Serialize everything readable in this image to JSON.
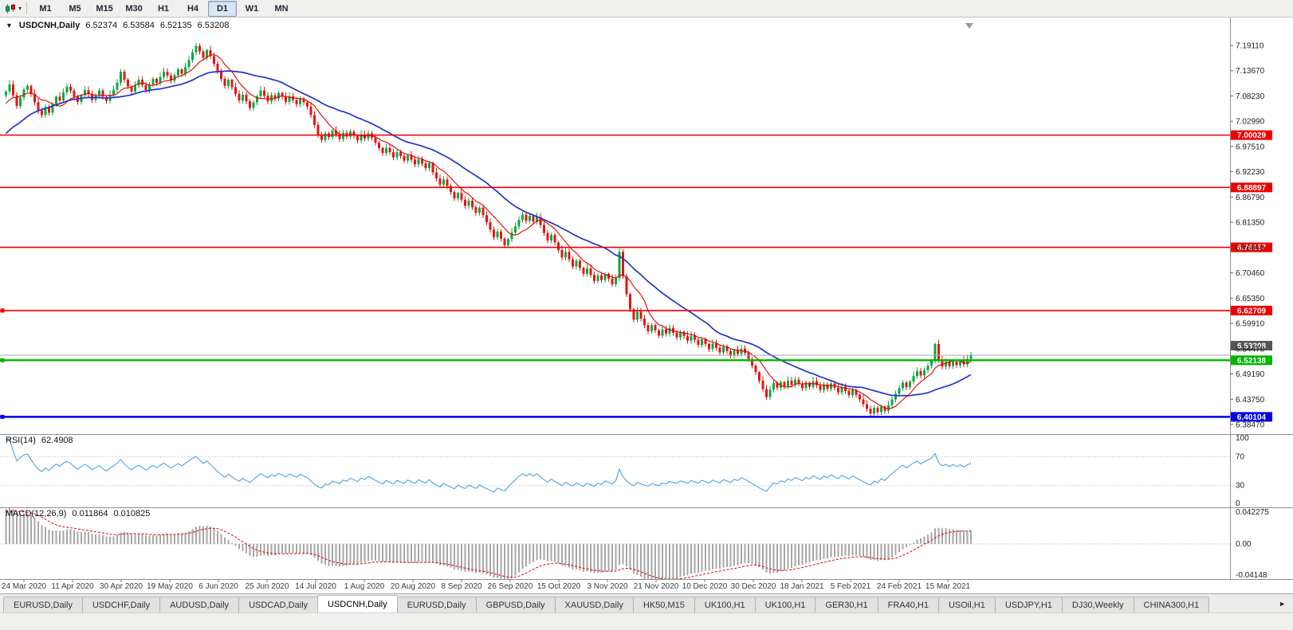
{
  "icons": {
    "dropdown_caret": "▾",
    "one_click_arrow": "▼",
    "tab_scroll_right": "►",
    "chart_type_icon": "candlestick-chart-icon",
    "chart_shift_icon": "chart-shift-triangle"
  },
  "toolbar": {
    "timeframes": [
      "M1",
      "M5",
      "M15",
      "M30",
      "H1",
      "H4",
      "D1",
      "W1",
      "MN"
    ],
    "active": "D1"
  },
  "chart": {
    "title": {
      "symbol": "USDCNH,Daily",
      "open": "6.52374",
      "high": "6.53584",
      "low": "6.52135",
      "close": "6.53208"
    },
    "price_scale": [
      "7.19110",
      "7.13670",
      "7.08230",
      "7.02990",
      "6.97510",
      "6.92230",
      "6.86790",
      "6.81350",
      "6.76010",
      "6.70460",
      "6.65350",
      "6.59910",
      "6.54470",
      "6.49190",
      "6.43750",
      "6.38470"
    ],
    "hlines": [
      {
        "label": "7.00029",
        "price": 7.00029,
        "color": "#ee0000",
        "width": 1.6,
        "handles": false
      },
      {
        "label": "6.88897",
        "price": 6.88897,
        "color": "#ee0000",
        "width": 1.6,
        "handles": false
      },
      {
        "label": "6.76157",
        "price": 6.76157,
        "color": "#ee0000",
        "width": 1.6,
        "handles": false
      },
      {
        "label": "6.62709",
        "price": 6.62709,
        "color": "#ee0000",
        "width": 1.6,
        "handles": true
      },
      {
        "label": "6.52138",
        "price": 6.52138,
        "color": "#00b400",
        "width": 2.4,
        "handles": true
      },
      {
        "label": "6.40104",
        "price": 6.40104,
        "color": "#0000ee",
        "width": 2.4,
        "handles": true
      }
    ],
    "current_price": {
      "label": "6.53208",
      "price": 6.53208,
      "color": "#555555"
    },
    "date_labels": [
      "24 Mar 2020",
      "11 Apr 2020",
      "30 Apr 2020",
      "19 May 2020",
      "6 Jun 2020",
      "25 Jun 2020",
      "14 Jul 2020",
      "1 Aug 2020",
      "20 Aug 2020",
      "8 Sep 2020",
      "26 Sep 2020",
      "15 Oct 2020",
      "3 Nov 2020",
      "21 Nov 2020",
      "10 Dec 2020",
      "30 Dec 2020",
      "18 Jan 2021",
      "5 Feb 2021",
      "24 Feb 2021",
      "15 Mar 2021"
    ]
  },
  "indicators": {
    "rsi": {
      "label": "RSI(14)",
      "value": "62.4908",
      "scale": [
        "100",
        "70",
        "30",
        "0"
      ],
      "marked_levels": [
        70,
        30
      ]
    },
    "macd": {
      "label": "MACD(12,26,9)",
      "value_main": "0.011864",
      "value_signal": "0.010825",
      "scale_top": "0.042275",
      "scale_zero": "0.00",
      "scale_bottom": "-0.04148"
    }
  },
  "tabs": {
    "items": [
      "EURUSD,Daily",
      "USDCHF,Daily",
      "AUDUSD,Daily",
      "USDCAD,Daily",
      "USDCNH,Daily",
      "EURUSD,Daily",
      "GBPUSD,Daily",
      "XAUUSD,Daily",
      "HK50,M15",
      "UK100,H1",
      "UK100,H1",
      "GER30,H1",
      "FRA40,H1",
      "USOil,H1",
      "USDJPY,H1",
      "DJ30,Weekly",
      "CHINA300,H1"
    ],
    "active_index": 4
  },
  "chart_data": {
    "type": "candlestick",
    "symbol": "USDCNH",
    "timeframe": "Daily",
    "x_start": "24 Mar 2020",
    "x_end": "15 Mar 2021",
    "ylim": [
      6.3644,
      7.2402
    ],
    "current_bar": {
      "open": 6.52374,
      "high": 6.53584,
      "low": 6.52135,
      "close": 6.53208
    },
    "first_open": 7.085,
    "closes": [
      7.093,
      7.108,
      7.085,
      7.062,
      7.08,
      7.097,
      7.105,
      7.088,
      7.07,
      7.052,
      7.043,
      7.06,
      7.048,
      7.066,
      7.082,
      7.074,
      7.091,
      7.103,
      7.095,
      7.082,
      7.071,
      7.085,
      7.096,
      7.088,
      7.075,
      7.084,
      7.095,
      7.082,
      7.073,
      7.086,
      7.097,
      7.112,
      7.135,
      7.118,
      7.104,
      7.093,
      7.106,
      7.118,
      7.107,
      7.096,
      7.108,
      7.12,
      7.111,
      7.124,
      7.135,
      7.127,
      7.116,
      7.128,
      7.14,
      7.131,
      7.145,
      7.16,
      7.176,
      7.19,
      7.178,
      7.165,
      7.181,
      7.168,
      7.152,
      7.136,
      7.12,
      7.105,
      7.118,
      7.102,
      7.088,
      7.074,
      7.086,
      7.072,
      7.058,
      7.07,
      7.083,
      7.095,
      7.084,
      7.072,
      7.085,
      7.078,
      7.09,
      7.082,
      7.071,
      7.083,
      7.075,
      7.066,
      7.078,
      7.07,
      7.061,
      7.043,
      7.022,
      7.001,
      6.99,
      7.004,
      6.996,
      7.01,
      7.002,
      6.992,
      7.005,
      6.997,
      7.008,
      6.999,
      6.989,
      7.001,
      6.993,
      7.004,
      6.995,
      6.984,
      6.973,
      6.962,
      6.973,
      6.964,
      6.953,
      6.964,
      6.956,
      6.946,
      6.957,
      6.948,
      6.938,
      6.949,
      6.94,
      6.93,
      6.941,
      6.921,
      6.908,
      6.895,
      6.906,
      6.892,
      6.879,
      6.866,
      6.877,
      6.863,
      6.85,
      6.861,
      6.847,
      6.835,
      6.846,
      6.83,
      6.815,
      6.799,
      6.783,
      6.795,
      6.78,
      6.766,
      6.779,
      6.793,
      6.806,
      6.82,
      6.831,
      6.818,
      6.829,
      6.816,
      6.826,
      6.809,
      6.792,
      6.776,
      6.788,
      6.772,
      6.756,
      6.74,
      6.752,
      6.736,
      6.721,
      6.733,
      6.718,
      6.705,
      6.717,
      6.703,
      6.69,
      6.702,
      6.692,
      6.705,
      6.695,
      6.683,
      6.696,
      6.752,
      6.7,
      6.662,
      6.63,
      6.608,
      6.625,
      6.61,
      6.596,
      6.583,
      6.596,
      6.585,
      6.574,
      6.587,
      6.578,
      6.59,
      6.58,
      6.57,
      6.582,
      6.573,
      6.563,
      6.574,
      6.565,
      6.554,
      6.566,
      6.556,
      6.545,
      6.557,
      6.548,
      6.538,
      6.55,
      6.541,
      6.531,
      6.543,
      6.535,
      6.546,
      6.537,
      6.524,
      6.51,
      6.496,
      6.478,
      6.46,
      6.443,
      6.459,
      6.473,
      6.463,
      6.475,
      6.466,
      6.478,
      6.469,
      6.48,
      6.472,
      6.462,
      6.474,
      6.465,
      6.477,
      6.468,
      6.458,
      6.47,
      6.461,
      6.472,
      6.463,
      6.453,
      6.465,
      6.456,
      6.447,
      6.458,
      6.448,
      6.438,
      6.428,
      6.418,
      6.408,
      6.42,
      6.411,
      6.423,
      6.414,
      6.426,
      6.438,
      6.45,
      6.462,
      6.474,
      6.464,
      6.476,
      6.488,
      6.498,
      6.489,
      6.5,
      6.51,
      6.52,
      6.556,
      6.522,
      6.508,
      6.518,
      6.509,
      6.519,
      6.511,
      6.521,
      6.513,
      6.524,
      6.532
    ],
    "overlays": [
      {
        "name": "ma-fast",
        "type": "sma",
        "period": 8,
        "color": "#e00000"
      },
      {
        "name": "ma-slow",
        "type": "sma",
        "period": 26,
        "color": "#2135c9"
      }
    ],
    "colors": {
      "up": "#0aa843",
      "down": "#e3150f",
      "rsi": "#4ea3e0",
      "macd_hist": "#a6a6a6",
      "macd_signal": "#e00000"
    },
    "subcharts": [
      {
        "type": "line",
        "name": "RSI(14)",
        "period": 14,
        "last": 62.4908,
        "range": [
          0,
          100
        ],
        "marked_levels": [
          70,
          30
        ]
      },
      {
        "type": "macd",
        "name": "MACD(12,26,9)",
        "fast": 12,
        "slow": 26,
        "signal": 9,
        "last_main": 0.011864,
        "last_signal": 0.010825,
        "range": [
          -0.04148,
          0.042275
        ]
      }
    ]
  }
}
